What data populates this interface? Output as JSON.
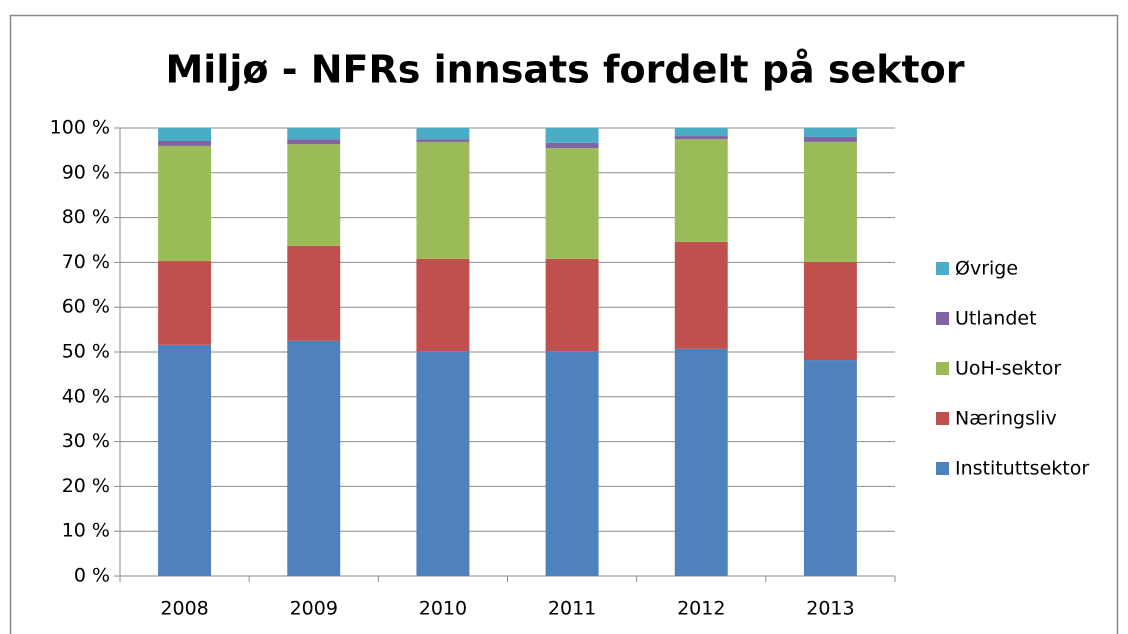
{
  "chart_data": {
    "type": "stacked_bar",
    "title": "Miljø - NFRs innsats fordelt på sektor",
    "categories": [
      "2008",
      "2009",
      "2010",
      "2011",
      "2012",
      "2013"
    ],
    "series": [
      {
        "name": "Instituttsektor",
        "color": "#4f81bd",
        "values": [
          51.6,
          52.5,
          50.2,
          50.2,
          50.7,
          48.2
        ]
      },
      {
        "name": "Næringsliv",
        "color": "#c0504d",
        "values": [
          18.7,
          21.2,
          20.6,
          20.6,
          23.9,
          21.9
        ]
      },
      {
        "name": "UoH-sektor",
        "color": "#9bbb59",
        "values": [
          25.7,
          22.7,
          26.1,
          24.7,
          22.9,
          26.8
        ]
      },
      {
        "name": "Utlandet",
        "color": "#8064a2",
        "values": [
          1.1,
          1.1,
          0.6,
          1.2,
          0.7,
          1.1
        ]
      },
      {
        "name": "Øvrige",
        "color": "#4bacc6",
        "values": [
          2.9,
          2.5,
          2.5,
          3.3,
          1.8,
          2.0
        ]
      }
    ],
    "ylim": [
      0,
      100
    ],
    "yticks": [
      {
        "value": 0,
        "label": "0 %"
      },
      {
        "value": 10,
        "label": "10 %"
      },
      {
        "value": 20,
        "label": "20 %"
      },
      {
        "value": 30,
        "label": "30 %"
      },
      {
        "value": 40,
        "label": "40 %"
      },
      {
        "value": 50,
        "label": "50 %"
      },
      {
        "value": 60,
        "label": "60 %"
      },
      {
        "value": 70,
        "label": "70 %"
      },
      {
        "value": 80,
        "label": "80 %"
      },
      {
        "value": 90,
        "label": "90 %"
      },
      {
        "value": 100,
        "label": "100 %"
      }
    ],
    "grid": true,
    "legend": "right"
  }
}
